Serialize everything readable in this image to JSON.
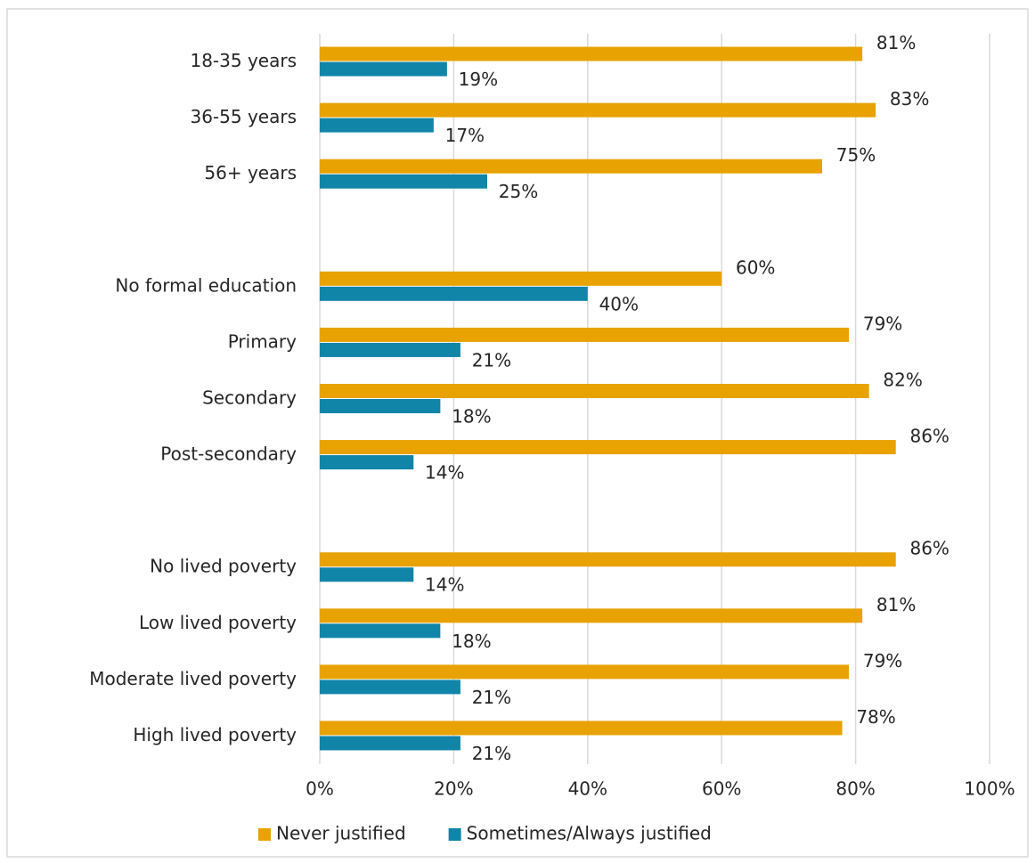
{
  "chart_data": {
    "type": "hbar",
    "categories": [
      "18-35 years",
      "36-55 years",
      "56+ years",
      null,
      "No formal education",
      "Primary",
      "Secondary",
      "Post-secondary",
      null,
      "No lived poverty",
      "Low lived poverty",
      "Moderate lived poverty",
      "High lived poverty"
    ],
    "series": [
      {
        "name": "Never justified",
        "color": "#e8a202",
        "values": [
          81,
          83,
          75,
          null,
          60,
          79,
          82,
          86,
          null,
          86,
          81,
          79,
          78
        ],
        "value_labels": [
          "81%",
          "83%",
          "75%",
          null,
          "60%",
          "79%",
          "82%",
          "86%",
          null,
          "86%",
          "81%",
          "79%",
          "78%"
        ]
      },
      {
        "name": "Sometimes/Always justified",
        "color": "#1185a8",
        "values": [
          19,
          17,
          25,
          null,
          40,
          21,
          18,
          14,
          null,
          14,
          18,
          21,
          21
        ],
        "value_labels": [
          "19%",
          "17%",
          "25%",
          null,
          "40%",
          "21%",
          "18%",
          "14%",
          null,
          "14%",
          "18%",
          "21%",
          "21%"
        ]
      }
    ],
    "xlim": [
      0,
      100
    ],
    "xticks": [
      {
        "value": 0,
        "label": "0%"
      },
      {
        "value": 20,
        "label": "20%"
      },
      {
        "value": 40,
        "label": "40%"
      },
      {
        "value": 60,
        "label": "60%"
      },
      {
        "value": 80,
        "label": "80%"
      },
      {
        "value": 100,
        "label": "100%"
      }
    ],
    "grid": true,
    "legend": "bottom"
  }
}
